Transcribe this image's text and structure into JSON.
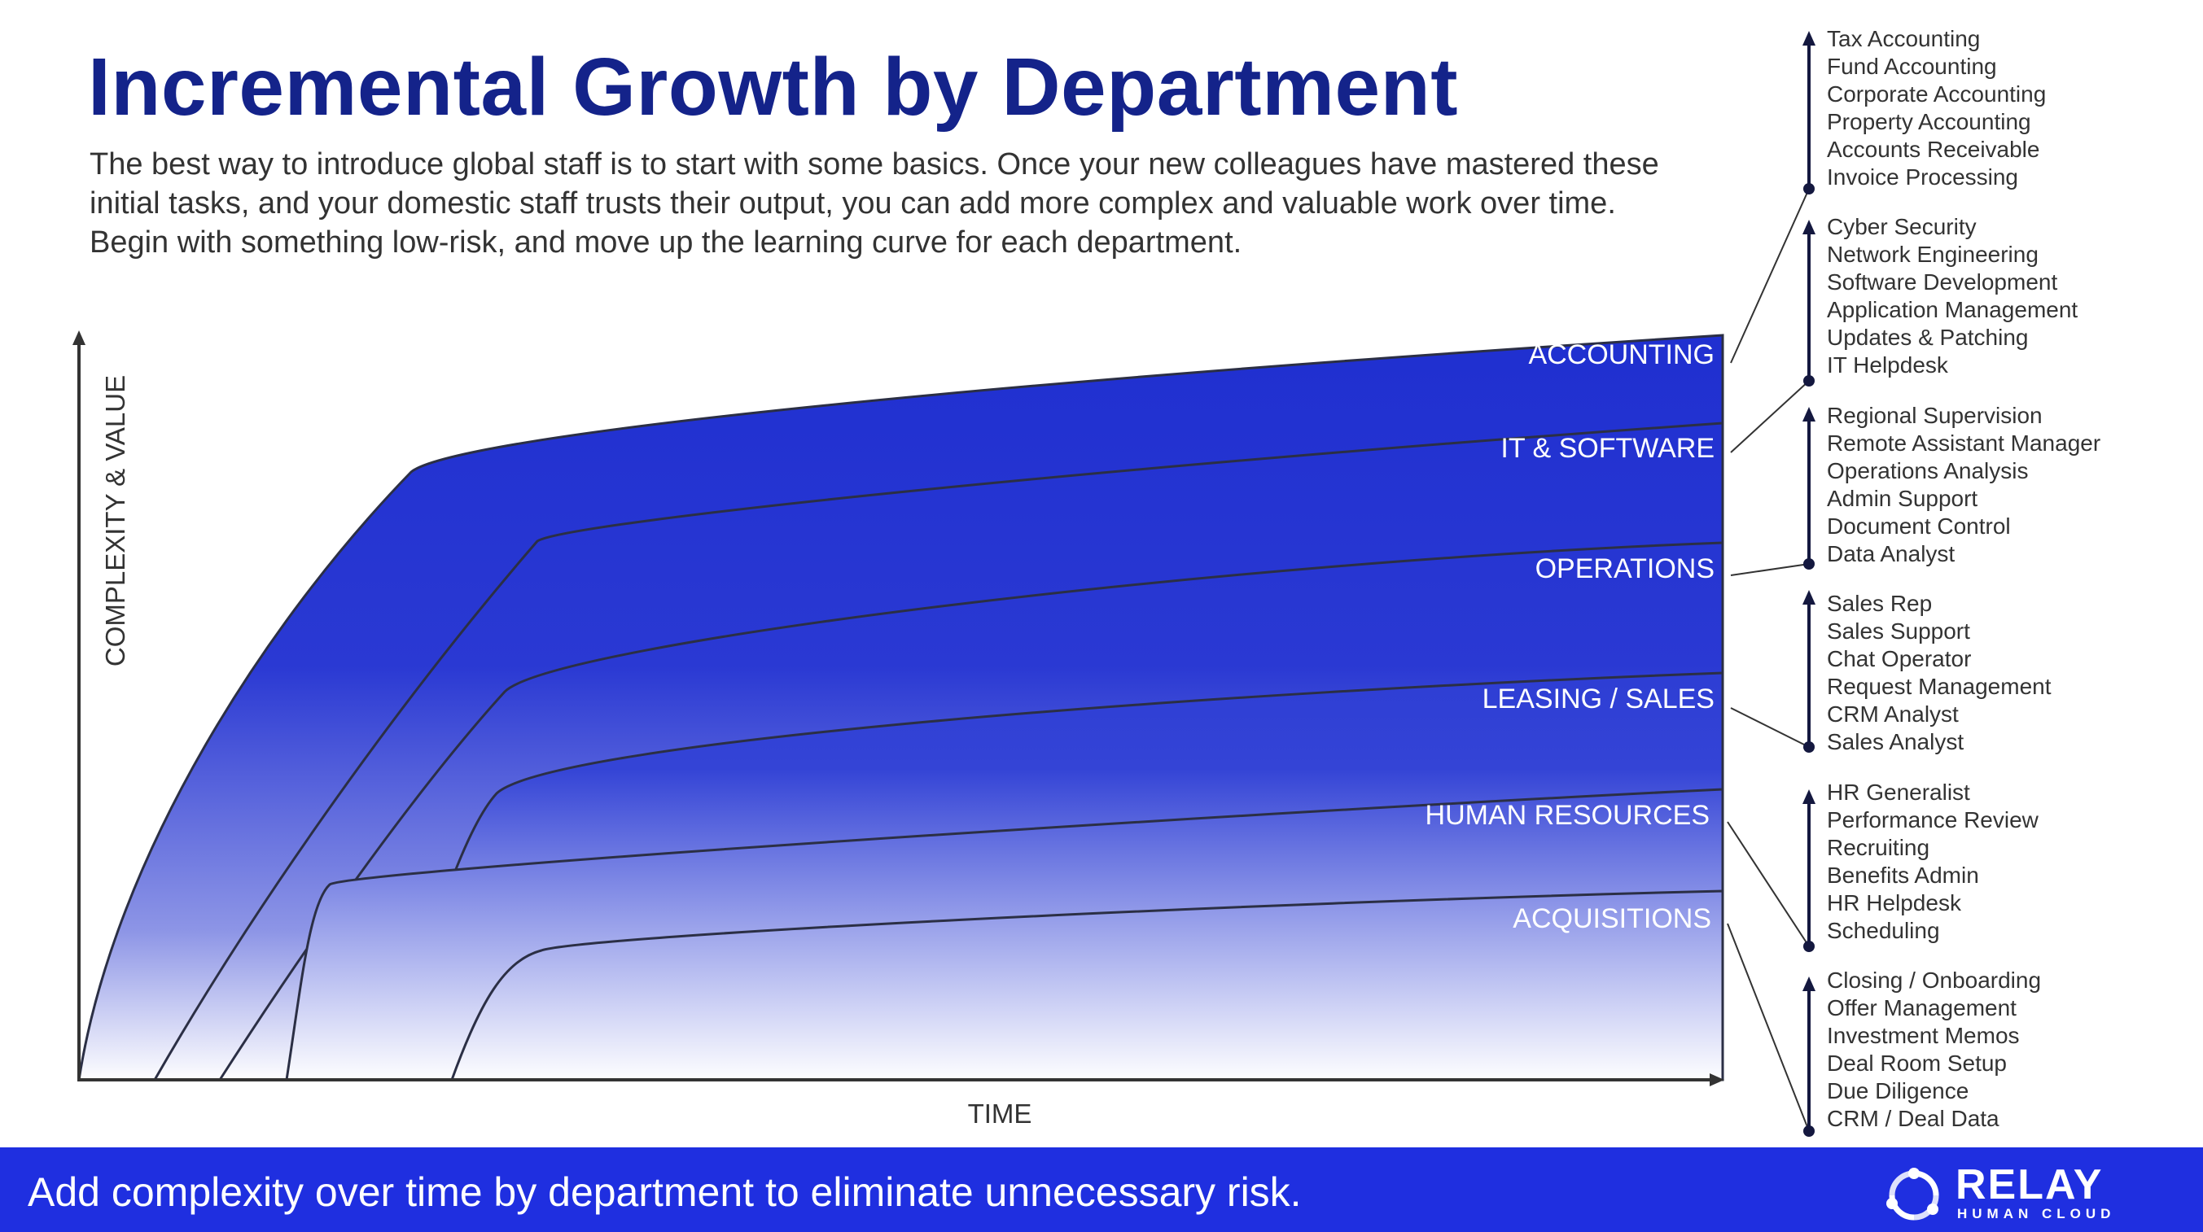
{
  "title": "Incremental Growth by Department",
  "intro": "The best way to introduce global staff is to start with some basics.  Once your new colleagues have mastered these initial tasks, and your domestic staff trusts their output, you can add more complex and valuable work over time.  Begin with something low-risk, and move up the learning curve for each department.",
  "axes": {
    "y_label": "COMPLEXITY & VALUE",
    "x_label": "TIME"
  },
  "colors": {
    "title": "#14238a",
    "band_fill": "#1f2fd0",
    "footer_bg": "#1f2fe0",
    "axis": "#333333"
  },
  "departments": [
    {
      "name": "ACCOUNTING",
      "tasks": [
        "Tax Accounting",
        "Fund Accounting",
        "Corporate Accounting",
        "Property Accounting",
        "Accounts Receivable",
        "Invoice Processing"
      ]
    },
    {
      "name": "IT & SOFTWARE",
      "tasks": [
        "Cyber Security",
        "Network Engineering",
        "Software Development",
        "Application Management",
        "Updates & Patching",
        "IT Helpdesk"
      ]
    },
    {
      "name": "OPERATIONS",
      "tasks": [
        "Regional Supervision",
        "Remote Assistant Manager",
        "Operations Analysis",
        "Admin Support",
        "Document Control",
        "Data Analyst"
      ]
    },
    {
      "name": "LEASING / SALES",
      "tasks": [
        "Sales Rep",
        "Sales Support",
        "Chat Operator",
        "Request Management",
        "CRM Analyst",
        "Sales Analyst"
      ]
    },
    {
      "name": "HUMAN RESOURCES",
      "tasks": [
        "HR Generalist",
        "Performance Review",
        "Recruiting",
        "Benefits Admin",
        "HR Helpdesk",
        "Scheduling"
      ]
    },
    {
      "name": "ACQUISITIONS",
      "tasks": [
        "Closing / Onboarding",
        "Offer Management",
        "Investment Memos",
        "Deal Room Setup",
        "Due Diligence",
        "CRM / Deal Data"
      ]
    }
  ],
  "footer": {
    "tagline": "Add complexity over time by department to eliminate unnecessary risk.",
    "logo_name": "RELAY",
    "logo_sub": "HUMAN CLOUD"
  }
}
